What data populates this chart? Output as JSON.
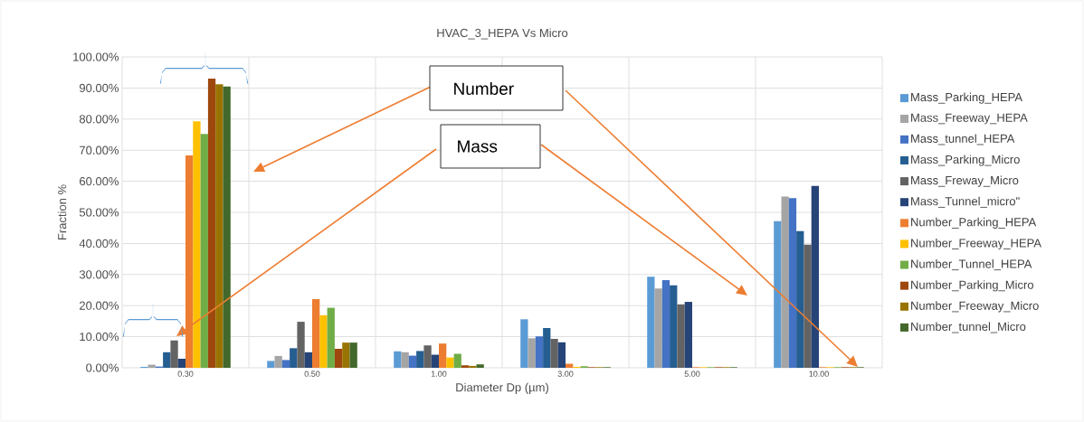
{
  "chart_data": {
    "type": "bar",
    "title": "HVAC_3_HEPA Vs Micro",
    "xlabel": "Diameter Dp (µm)",
    "ylabel": "Fraction %",
    "categories": [
      "0.30",
      "0.50",
      "1.00",
      "3.00",
      "5.00",
      "10.00"
    ],
    "series": [
      {
        "name": "Mass_Parking_HEPA",
        "color": "#5b9bd5",
        "values": [
          0.3,
          2.2,
          5.3,
          15.6,
          29.3,
          47.2
        ]
      },
      {
        "name": "Mass_Freeway_HEPA",
        "color": "#a5a5a5",
        "values": [
          1.0,
          3.8,
          5.0,
          9.5,
          25.5,
          55.1
        ]
      },
      {
        "name": "Mass_tunnel_HEPA",
        "color": "#4472c4",
        "values": [
          0.4,
          2.5,
          3.9,
          10.1,
          28.2,
          54.6
        ]
      },
      {
        "name": "Mass_Parking_Micro",
        "color": "#255e91",
        "values": [
          5.0,
          6.3,
          5.4,
          12.8,
          26.5,
          44.0
        ]
      },
      {
        "name": "Mass_Freway_Micro",
        "color": "#636363",
        "values": [
          8.8,
          14.8,
          7.2,
          9.3,
          20.4,
          39.6
        ]
      },
      {
        "name": "Mass_Tunnel_micro\"",
        "color": "#264478",
        "values": [
          2.9,
          5.0,
          4.2,
          8.2,
          21.2,
          58.5
        ]
      },
      {
        "name": "Number_Parking_HEPA",
        "color": "#ed7d31",
        "values": [
          68.3,
          22.1,
          7.8,
          1.3,
          0.2,
          0.2
        ]
      },
      {
        "name": "Number_Freeway_HEPA",
        "color": "#ffc000",
        "values": [
          79.3,
          16.9,
          3.3,
          0.3,
          0.2,
          0.2
        ]
      },
      {
        "name": "Number_Tunnel_HEPA",
        "color": "#70ad47",
        "values": [
          75.2,
          19.3,
          4.5,
          0.5,
          0.2,
          0.2
        ]
      },
      {
        "name": "Number_Parking_Micro",
        "color": "#9e480e",
        "values": [
          93.0,
          6.1,
          0.8,
          0.2,
          0.2,
          0.2
        ]
      },
      {
        "name": "Number_Freeway_Micro",
        "color": "#997300",
        "values": [
          91.2,
          8.1,
          0.6,
          0.2,
          0.2,
          0.2
        ]
      },
      {
        "name": "Number_tunnel_Micro",
        "color": "#43682b",
        "values": [
          90.5,
          8.1,
          1.1,
          0.2,
          0.2,
          0.2
        ]
      }
    ],
    "ylim": [
      0,
      100
    ],
    "yticks": [
      {
        "value": 0,
        "label": "0.00%"
      },
      {
        "value": 10,
        "label": "10.00%"
      },
      {
        "value": 20,
        "label": "20.00%"
      },
      {
        "value": 30,
        "label": "30.00%"
      },
      {
        "value": 40,
        "label": "40.00%"
      },
      {
        "value": 50,
        "label": "50.00%"
      },
      {
        "value": 60,
        "label": "60.00%"
      },
      {
        "value": 70,
        "label": "70.00%"
      },
      {
        "value": 80,
        "label": "80.00%"
      },
      {
        "value": 90,
        "label": "90.00%"
      },
      {
        "value": 100,
        "label": "100.00%"
      }
    ],
    "grid": true,
    "legend": "right",
    "annotations": [
      "Number",
      "Mass"
    ]
  }
}
